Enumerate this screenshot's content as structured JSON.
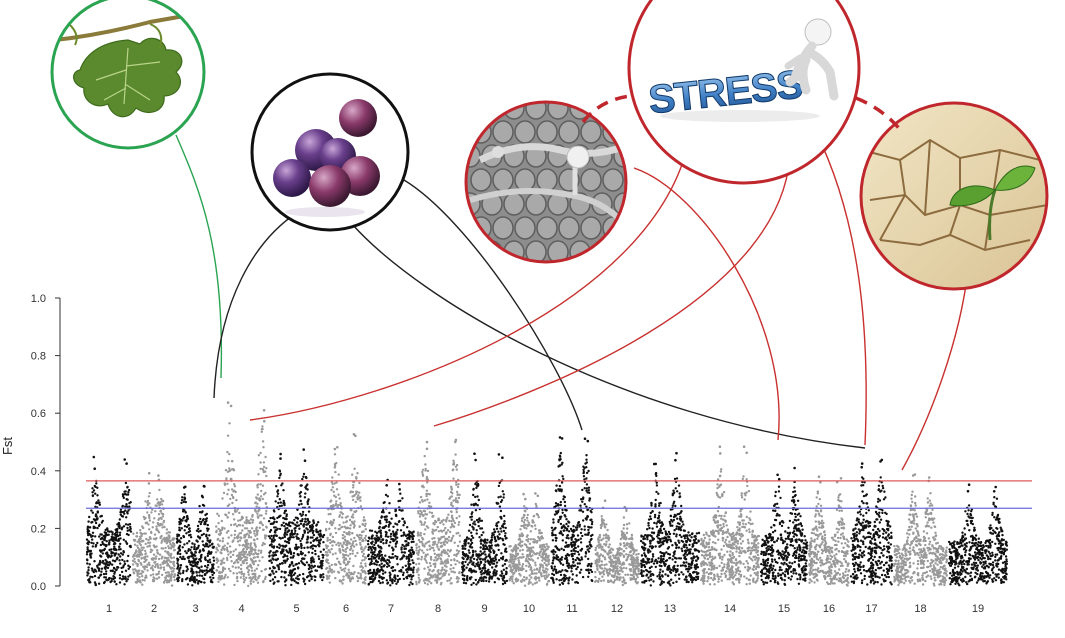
{
  "chart_data": {
    "type": "scatter",
    "title": "",
    "xlabel": "",
    "ylabel": "Fst",
    "ylim": [
      0,
      1.0
    ],
    "yticks": [
      "0.0",
      "0.2",
      "0.4",
      "0.6",
      "0.8",
      "1.0"
    ],
    "categories": [
      "1",
      "2",
      "3",
      "4",
      "5",
      "6",
      "7",
      "8",
      "9",
      "10",
      "11",
      "12",
      "13",
      "14",
      "15",
      "16",
      "17",
      "18",
      "19"
    ],
    "thresholds": [
      {
        "value": 0.365,
        "color": "#e05a5a"
      },
      {
        "value": 0.27,
        "color": "#6b6bd6"
      }
    ],
    "chromosome_peak_fst": [
      0.45,
      0.4,
      0.38,
      0.65,
      0.48,
      0.54,
      0.38,
      0.53,
      0.46,
      0.33,
      0.54,
      0.3,
      0.47,
      0.5,
      0.41,
      0.38,
      0.46,
      0.39,
      0.36
    ],
    "chromosome_baseline_fst": [
      0.18,
      0.16,
      0.12,
      0.22,
      0.2,
      0.2,
      0.17,
      0.21,
      0.14,
      0.12,
      0.18,
      0.1,
      0.16,
      0.16,
      0.15,
      0.12,
      0.17,
      0.12,
      0.14
    ],
    "series_colors": [
      "#111111",
      "#999999"
    ]
  },
  "annotations": {
    "stress_label": "STRESS",
    "colors": {
      "leaf_circle": "#2aa451",
      "grape_circle": "#111111",
      "stress_circle": "#c0272d",
      "link_black": "#222222",
      "link_red": "#c8312f",
      "link_green": "#2aa451"
    },
    "icons": [
      "grape-leaf-icon",
      "grape-berries-icon",
      "fungus-micrograph-icon",
      "stress-figure-icon",
      "drought-seedling-icon"
    ]
  }
}
